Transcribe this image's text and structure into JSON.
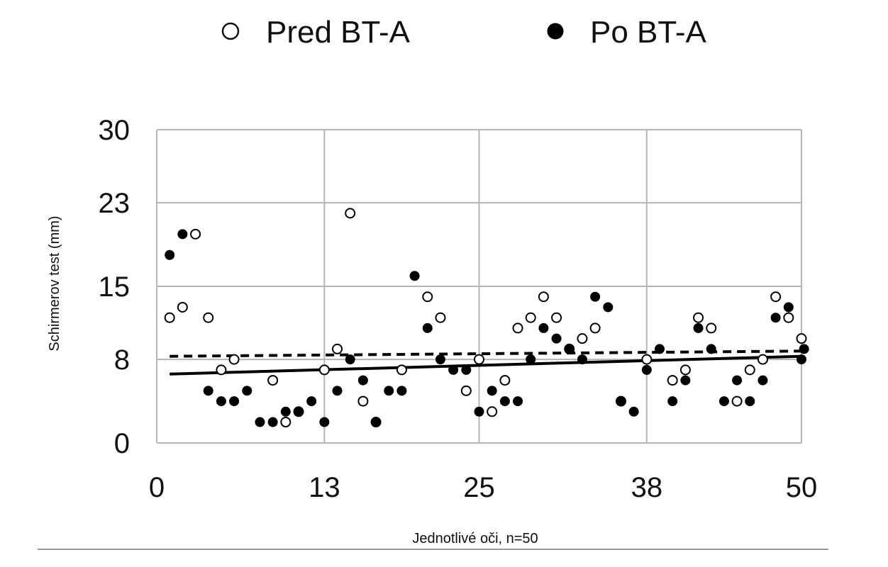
{
  "chart_data": {
    "type": "scatter",
    "xlabel": "Jednotlivé oči, n=50",
    "ylabel": "Schirmerov test (mm)",
    "xlim": [
      0,
      50
    ],
    "ylim": [
      0,
      30
    ],
    "x_ticks": [
      0,
      13,
      25,
      38,
      50
    ],
    "x_tick_labels": [
      "0",
      "13",
      "25",
      "38",
      "50"
    ],
    "y_ticks": [
      0,
      8,
      15,
      23,
      30
    ],
    "y_tick_labels": [
      "0",
      "8",
      "15",
      "23",
      "30"
    ],
    "grid": true,
    "legend_position": "top",
    "series": [
      {
        "name": "Pred BT-A",
        "marker": "open-circle",
        "color": "#111111",
        "trendline": "dashed",
        "trend": [
          8.3,
          8.8
        ],
        "points": [
          [
            1,
            12
          ],
          [
            2,
            13
          ],
          [
            3,
            20
          ],
          [
            4,
            12
          ],
          [
            5,
            7
          ],
          [
            6,
            8
          ],
          [
            9,
            6
          ],
          [
            10,
            2
          ],
          [
            11,
            3
          ],
          [
            13,
            7
          ],
          [
            14,
            9
          ],
          [
            15,
            22
          ],
          [
            16,
            4
          ],
          [
            17,
            2
          ],
          [
            19,
            7
          ],
          [
            21,
            14
          ],
          [
            22,
            12
          ],
          [
            24,
            5
          ],
          [
            25,
            8
          ],
          [
            26,
            3
          ],
          [
            27,
            6
          ],
          [
            28,
            11
          ],
          [
            29,
            12
          ],
          [
            30,
            14
          ],
          [
            31,
            12
          ],
          [
            32,
            9
          ],
          [
            33,
            10
          ],
          [
            34,
            11
          ],
          [
            36,
            4
          ],
          [
            38,
            8
          ],
          [
            40,
            6
          ],
          [
            41,
            7
          ],
          [
            42,
            12
          ],
          [
            43,
            11
          ],
          [
            45,
            4
          ],
          [
            46,
            7
          ],
          [
            47,
            8
          ],
          [
            48,
            14
          ],
          [
            49,
            12
          ],
          [
            50,
            10
          ]
        ]
      },
      {
        "name": "Po BT-A",
        "marker": "filled-circle",
        "color": "#000000",
        "trendline": "solid",
        "trend": [
          6.6,
          8.3
        ],
        "points": [
          [
            1,
            18
          ],
          [
            2,
            20
          ],
          [
            4,
            5
          ],
          [
            5,
            4
          ],
          [
            6,
            4
          ],
          [
            7,
            5
          ],
          [
            8,
            2
          ],
          [
            9,
            2
          ],
          [
            10,
            3
          ],
          [
            11,
            3
          ],
          [
            12,
            4
          ],
          [
            13,
            2
          ],
          [
            14,
            5
          ],
          [
            15,
            8
          ],
          [
            16,
            6
          ],
          [
            17,
            2
          ],
          [
            18,
            5
          ],
          [
            19,
            5
          ],
          [
            20,
            16
          ],
          [
            21,
            11
          ],
          [
            22,
            8
          ],
          [
            23,
            7
          ],
          [
            24,
            7
          ],
          [
            25,
            3
          ],
          [
            26,
            5
          ],
          [
            27,
            4
          ],
          [
            28,
            4
          ],
          [
            29,
            8
          ],
          [
            30,
            11
          ],
          [
            31,
            10
          ],
          [
            32,
            9
          ],
          [
            33,
            8
          ],
          [
            34,
            14
          ],
          [
            35,
            13
          ],
          [
            36,
            4
          ],
          [
            37,
            3
          ],
          [
            38,
            7
          ],
          [
            39,
            9
          ],
          [
            40,
            4
          ],
          [
            41,
            6
          ],
          [
            42,
            11
          ],
          [
            43,
            9
          ],
          [
            44,
            4
          ],
          [
            45,
            6
          ],
          [
            46,
            4
          ],
          [
            47,
            6
          ],
          [
            48,
            12
          ],
          [
            49,
            13
          ],
          [
            50,
            8
          ],
          [
            50.2,
            9
          ]
        ]
      }
    ]
  }
}
